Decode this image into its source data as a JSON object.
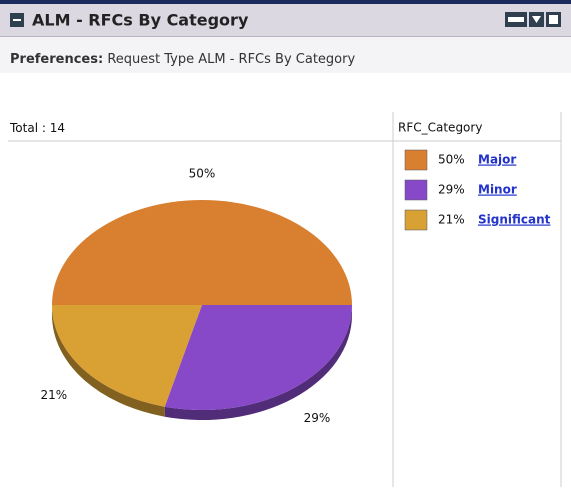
{
  "header": {
    "title": "ALM  - RFCs By Category"
  },
  "preferences": {
    "label": "Preferences:",
    "text": "Request Type ALM - RFCs By Category"
  },
  "chart_data": {
    "type": "pie",
    "total_label": "Total :",
    "total": 14,
    "legend_title": "RFC_Category",
    "categories": [
      "Major",
      "Minor",
      "Significant"
    ],
    "values": [
      50,
      29,
      21
    ],
    "value_labels": [
      "50%",
      "29%",
      "21%"
    ],
    "colors": [
      "#d98030",
      "#8749c8",
      "#d9a033"
    ]
  }
}
